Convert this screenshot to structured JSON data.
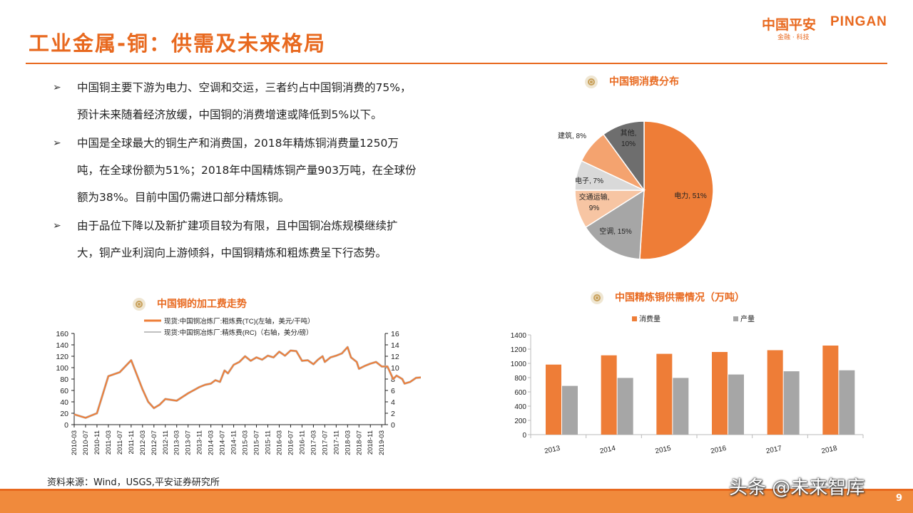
{
  "title": "工业金属-铜：供需及未来格局",
  "logo": {
    "cn": "中国平安",
    "en": "PINGAN",
    "sub": "金融 · 科技"
  },
  "bullets": [
    {
      "marker": "➢",
      "lines": [
        "中国铜主要下游为电力、空调和交运，三者约占中国铜消费的75%，",
        "预计未来随着经济放缓，中国铜的消费增速或降低到5%以下。"
      ]
    },
    {
      "marker": "➢",
      "lines": [
        "中国是全球最大的铜生产和消费国，2018年精炼铜消费量1250万",
        "吨，在全球份额为51%；2018年中国精炼铜产量903万吨，在全球份",
        "额为38%。目前中国仍需进口部分精炼铜。"
      ]
    },
    {
      "marker": "➢",
      "lines": [
        "由于品位下降以及新扩建项目较为有限，且中国铜冶炼规模继续扩",
        "大，铜产业利润向上游倾斜，中国铜精炼和粗炼费呈下行态势。"
      ]
    }
  ],
  "source": "资料来源：Wind，USGS,平安证券研究所",
  "page_number": "9",
  "watermark": "头条 @未来智库",
  "chart_data": [
    {
      "type": "pie",
      "title": "中国铜消费分布",
      "slices": [
        {
          "label": "电力",
          "pct_text": "51%",
          "value": 51,
          "color": "#ee7d37"
        },
        {
          "label": "空调",
          "pct_text": "15%",
          "value": 15,
          "color": "#a6a6a6"
        },
        {
          "label": "交通运输,",
          "pct_text": "9%",
          "value": 9,
          "color": "#f7c5a3"
        },
        {
          "label": "电子",
          "pct_text": "7%",
          "value": 7,
          "color": "#d9d9d9"
        },
        {
          "label": "建筑",
          "pct_text": "8%",
          "value": 8,
          "color": "#f4a36f"
        },
        {
          "label": "其他,",
          "pct_text": "10%",
          "value": 10,
          "color": "#6e6e6e"
        }
      ]
    },
    {
      "type": "line",
      "title": "中国铜的加工费走势",
      "series": [
        {
          "name": "现货:中国铜冶炼厂:粗炼费(TC)(左轴，美元/干吨）",
          "color": "#ee7d37",
          "axis": "left"
        },
        {
          "name": "现货:中国铜冶炼厂:精炼费(RC)（右轴，美分/磅）",
          "color": "#bfbfbf",
          "axis": "right"
        }
      ],
      "x_ticks": [
        "2010-03",
        "2010-07",
        "2010-11",
        "2011-03",
        "2011-07",
        "2011-11",
        "2012-03",
        "2012-07",
        "2012-11",
        "2013-03",
        "2013-07",
        "2013-11",
        "2014-03",
        "2014-07",
        "2014-11",
        "2015-03",
        "2015-07",
        "2015-11",
        "2016-03",
        "2016-07",
        "2016-11",
        "2017-03",
        "2017-07",
        "2017-11",
        "2018-03",
        "2018-07",
        "2018-11",
        "2019-03"
      ],
      "y_left": {
        "min": 0,
        "max": 160,
        "ticks": [
          0,
          20,
          40,
          60,
          80,
          100,
          120,
          140,
          160
        ]
      },
      "y_right": {
        "min": 0,
        "max": 16,
        "ticks": [
          0,
          2,
          4,
          6,
          8,
          10,
          12,
          14,
          16
        ]
      },
      "tc_values": [
        [
          0,
          18
        ],
        [
          1,
          12
        ],
        [
          2,
          20
        ],
        [
          3,
          85
        ],
        [
          4,
          92
        ],
        [
          5,
          113
        ],
        [
          6,
          62
        ],
        [
          6.5,
          40
        ],
        [
          7,
          29
        ],
        [
          7.5,
          35
        ],
        [
          8,
          45
        ],
        [
          9,
          42
        ],
        [
          10,
          55
        ],
        [
          11,
          66
        ],
        [
          11.5,
          70
        ],
        [
          12,
          72
        ],
        [
          12.4,
          78
        ],
        [
          12.8,
          75
        ],
        [
          13.2,
          95
        ],
        [
          13.5,
          90
        ],
        [
          14,
          105
        ],
        [
          14.5,
          110
        ],
        [
          15,
          120
        ],
        [
          15.5,
          112
        ],
        [
          16,
          118
        ],
        [
          16.5,
          114
        ],
        [
          17,
          121
        ],
        [
          17.5,
          118
        ],
        [
          18,
          128
        ],
        [
          18.5,
          121
        ],
        [
          19,
          130
        ],
        [
          19.5,
          129
        ],
        [
          20,
          112
        ],
        [
          20.5,
          113
        ],
        [
          21,
          106
        ],
        [
          21.4,
          114
        ],
        [
          21.8,
          120
        ],
        [
          22,
          110
        ],
        [
          22.5,
          118
        ],
        [
          23,
          121
        ],
        [
          23.5,
          125
        ],
        [
          24,
          136
        ],
        [
          24.3,
          118
        ],
        [
          24.8,
          110
        ],
        [
          25,
          98
        ],
        [
          25.5,
          103
        ],
        [
          26,
          107
        ],
        [
          26.5,
          110
        ],
        [
          27,
          102
        ],
        [
          27.5,
          102
        ],
        [
          28,
          80
        ],
        [
          28.3,
          86
        ],
        [
          28.8,
          80
        ],
        [
          29,
          72
        ],
        [
          29.5,
          75
        ],
        [
          30,
          82
        ],
        [
          30.5,
          83
        ],
        [
          31,
          82
        ],
        [
          31.5,
          88
        ],
        [
          32,
          86
        ],
        [
          32.5,
          78
        ],
        [
          33,
          74
        ],
        [
          33.5,
          78
        ],
        [
          34,
          85
        ],
        [
          34.5,
          88
        ],
        [
          35,
          92
        ],
        [
          35.5,
          92
        ],
        [
          36,
          82
        ],
        [
          36.5,
          74
        ],
        [
          37,
          68
        ],
        [
          37.3,
          62
        ]
      ]
    },
    {
      "type": "bar",
      "title": "中国精炼铜供需情况（万吨）",
      "categories": [
        "2013",
        "2014",
        "2015",
        "2016",
        "2017",
        "2018"
      ],
      "series": [
        {
          "name": "消费量",
          "color": "#ee7d37",
          "values": [
            983,
            1113,
            1134,
            1160,
            1185,
            1250
          ]
        },
        {
          "name": "产量",
          "color": "#a6a6a6",
          "values": [
            684,
            796,
            796,
            844,
            889,
            903
          ]
        }
      ],
      "ylim": [
        0,
        1400
      ],
      "y_ticks": [
        0,
        200,
        400,
        600,
        800,
        1000,
        1200,
        1400
      ]
    }
  ]
}
